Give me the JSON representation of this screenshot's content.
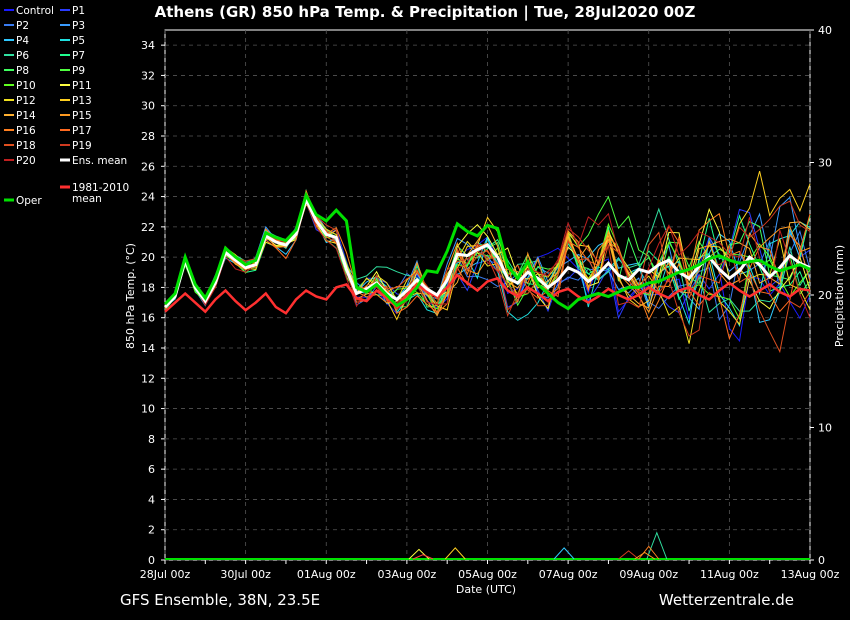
{
  "title": "Athens  (GR)  850 hPa Temp. & Precipitation | Tue, 28Jul2020 00Z",
  "footer_left": "GFS Ensemble, 38N, 23.5E",
  "footer_right": "Wetterzentrale.de",
  "legend": [
    {
      "label": "Control",
      "color": "#1a1aff"
    },
    {
      "label": "P1",
      "color": "#2a3cff"
    },
    {
      "label": "P2",
      "color": "#3a7cf0"
    },
    {
      "label": "P3",
      "color": "#3a9cff"
    },
    {
      "label": "P4",
      "color": "#30c8ff"
    },
    {
      "label": "P5",
      "color": "#20e0e0"
    },
    {
      "label": "P6",
      "color": "#30e0a0"
    },
    {
      "label": "P7",
      "color": "#20ff90"
    },
    {
      "label": "P8",
      "color": "#40ff60"
    },
    {
      "label": "P9",
      "color": "#50ff40"
    },
    {
      "label": "P10",
      "color": "#60ff20"
    },
    {
      "label": "P11",
      "color": "#ffff40"
    },
    {
      "label": "P12",
      "color": "#f0e020"
    },
    {
      "label": "P13",
      "color": "#ffd020"
    },
    {
      "label": "P14",
      "color": "#ffb030"
    },
    {
      "label": "P15",
      "color": "#ff9a20"
    },
    {
      "label": "P16",
      "color": "#ff8020"
    },
    {
      "label": "P17",
      "color": "#ff6a20"
    },
    {
      "label": "P18",
      "color": "#e05020"
    },
    {
      "label": "P19",
      "color": "#d03a20"
    },
    {
      "label": "P20",
      "color": "#c02020"
    },
    {
      "label": "Ens. mean",
      "color": "#ffffff"
    },
    {
      "label": "1981-2010 mean",
      "color": "#ff3030"
    },
    {
      "label": "Oper",
      "color": "#00e000"
    }
  ],
  "chart_data": {
    "type": "line",
    "xlabel": "Date (UTC)",
    "ylabel": "850 hPa Temp. (°C)",
    "y2label": "Precipitation (mm)",
    "x_range": [
      "28Jul 00z",
      "13Aug 00z"
    ],
    "x_step_hours": 6,
    "xticks": [
      "28Jul 00z",
      "30Jul 00z",
      "01Aug 00z",
      "03Aug 00z",
      "05Aug 00z",
      "07Aug 00z",
      "09Aug 00z",
      "11Aug 00z",
      "13Aug 00z"
    ],
    "ylim": [
      0,
      35
    ],
    "yticks": [
      0,
      2,
      4,
      6,
      8,
      10,
      12,
      14,
      16,
      18,
      20,
      22,
      24,
      26,
      28,
      30,
      32,
      34
    ],
    "y2lim": [
      0,
      40
    ],
    "y2ticks": [
      0,
      10,
      20,
      30,
      40
    ],
    "grid": true,
    "temp_series": {
      "ens_mean": [
        16.7,
        17.4,
        19.8,
        18.0,
        17.1,
        18.3,
        20.3,
        19.8,
        19.3,
        19.5,
        21.4,
        21.0,
        20.8,
        21.5,
        23.8,
        22.4,
        21.5,
        21.3,
        19.2,
        17.6,
        17.9,
        18.3,
        17.6,
        17.2,
        17.8,
        18.5,
        17.9,
        17.5,
        18.5,
        20.2,
        20.1,
        20.5,
        20.8,
        20.0,
        18.6,
        18.3,
        19.0,
        18.6,
        18.0,
        18.5,
        19.3,
        19.0,
        18.4,
        18.9,
        19.6,
        18.8,
        18.5,
        19.2,
        19.0,
        19.5,
        19.8,
        19.0,
        18.6,
        19.4,
        20.0,
        19.2,
        18.6,
        19.1,
        20.0,
        19.5,
        18.7,
        19.3,
        20.1,
        19.6,
        19.3
      ],
      "oper": [
        16.9,
        17.6,
        20.0,
        18.2,
        17.3,
        18.6,
        20.6,
        20.0,
        19.5,
        19.8,
        21.6,
        21.3,
        21.1,
        21.8,
        24.1,
        22.8,
        22.4,
        23.1,
        22.4,
        18.0,
        17.7,
        18.2,
        17.5,
        16.8,
        17.2,
        18.0,
        19.1,
        19.0,
        20.4,
        22.2,
        21.7,
        21.4,
        22.1,
        21.9,
        19.4,
        18.6,
        19.7,
        18.2,
        17.6,
        17.0,
        16.6,
        17.2,
        17.4,
        17.6,
        17.4,
        17.7,
        18.0,
        18.0,
        18.3,
        18.4,
        18.7,
        19.0,
        19.2,
        19.5,
        19.9,
        20.1,
        19.8,
        19.6,
        19.7,
        19.8,
        19.4,
        19.1,
        19.3,
        19.5,
        19.2
      ],
      "climate_mean": [
        16.4,
        17.0,
        17.6,
        17.0,
        16.4,
        17.2,
        17.8,
        17.1,
        16.5,
        17.0,
        17.6,
        16.7,
        16.3,
        17.2,
        17.8,
        17.4,
        17.2,
        18.0,
        18.2,
        17.3,
        17.1,
        17.8,
        17.3,
        16.7,
        17.5,
        18.2,
        17.7,
        17.4,
        18.0,
        18.8,
        18.3,
        17.8,
        18.4,
        18.6,
        17.8,
        17.4,
        18.0,
        17.6,
        17.1,
        17.7,
        17.9,
        17.4,
        17.0,
        17.4,
        17.9,
        17.5,
        17.2,
        17.5,
        18.0,
        17.6,
        17.3,
        17.8,
        18.0,
        17.5,
        17.2,
        17.8,
        18.3,
        17.8,
        17.4,
        17.8,
        18.2,
        17.7,
        17.4,
        17.9,
        17.8
      ]
    },
    "precip_series": {
      "oper": [
        0,
        0,
        0,
        0,
        0,
        0,
        0,
        0,
        0,
        0,
        0,
        0,
        0,
        0,
        0,
        0,
        0,
        0,
        0,
        0,
        0,
        0,
        0,
        0,
        0,
        0,
        0,
        0,
        0,
        0,
        0,
        0,
        0,
        0,
        0,
        0,
        0,
        0,
        0,
        0,
        0,
        0,
        0,
        0,
        0,
        0,
        0,
        0,
        0,
        0,
        0,
        0,
        0,
        0,
        0,
        0,
        0,
        0,
        0,
        0,
        0,
        0,
        0,
        0,
        0
      ]
    },
    "precip_spikes": [
      {
        "x": 6.3,
        "v": 0.7,
        "color": "#ffff40"
      },
      {
        "x": 6.4,
        "v": 0.35,
        "color": "#ff4040"
      },
      {
        "x": 7.2,
        "v": 0.8,
        "color": "#ffd020"
      },
      {
        "x": 9.9,
        "v": 0.8,
        "color": "#30c8ff"
      },
      {
        "x": 11.5,
        "v": 0.6,
        "color": "#d03a20"
      },
      {
        "x": 12.2,
        "v": 1.8,
        "color": "#30e0a0"
      },
      {
        "x": 12.0,
        "v": 0.9,
        "color": "#ff8020"
      },
      {
        "x": 11.9,
        "v": 0.5,
        "color": "#ff9a20"
      }
    ]
  }
}
